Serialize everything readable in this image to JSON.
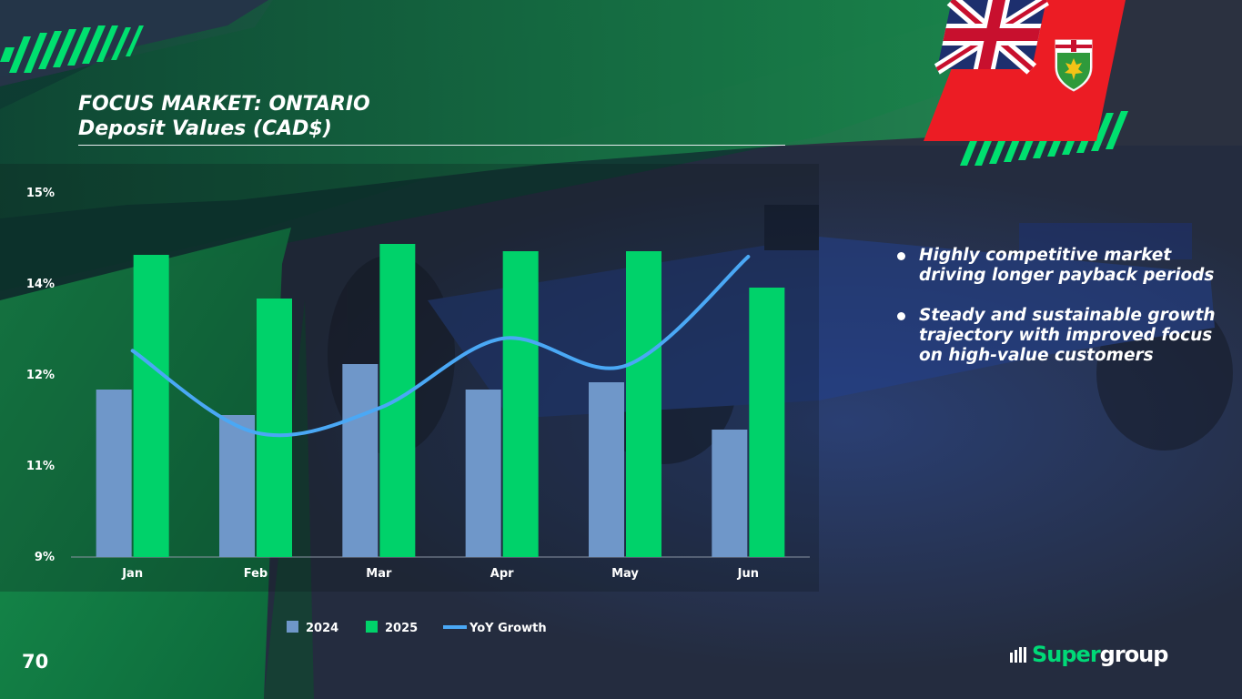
{
  "slide": {
    "title_line1": "FOCUS MARKET: ONTARIO",
    "title_line2": "Deposit Values (CAD$)",
    "page_number": "70"
  },
  "bullets": [
    "Highly competitive market driving longer payback periods",
    "Steady and sustainable growth trajectory with improved focus on high-value customers"
  ],
  "logo": {
    "part1": "Super",
    "part2": "group"
  },
  "colors": {
    "series_2024": "#6f97c9",
    "series_2025": "#00d26a",
    "yoy_line": "#4aa8f5",
    "flag_red": "#ec1c24",
    "brand_green": "#00d977"
  },
  "chart_data": {
    "type": "bar",
    "categories": [
      "Jan",
      "Feb",
      "Mar",
      "Apr",
      "May",
      "Jun"
    ],
    "series": [
      {
        "name": "2024",
        "type": "bar",
        "values": [
          0.46,
          0.39,
          0.53,
          0.46,
          0.48,
          0.35
        ]
      },
      {
        "name": "2025",
        "type": "bar",
        "values": [
          0.83,
          0.71,
          0.86,
          0.84,
          0.84,
          0.74
        ]
      },
      {
        "name": "YoY Growth",
        "type": "line",
        "values": [
          12.4,
          11.05,
          11.45,
          12.6,
          12.15,
          13.95
        ]
      }
    ],
    "y_ticks": [
      "15%",
      "14%",
      "12%",
      "11%",
      "9%"
    ],
    "legend": [
      "2024",
      "2025",
      "YoY Growth"
    ],
    "legend_position": "bottom",
    "grid": false,
    "ylim": [
      9,
      15
    ],
    "note": ""
  }
}
